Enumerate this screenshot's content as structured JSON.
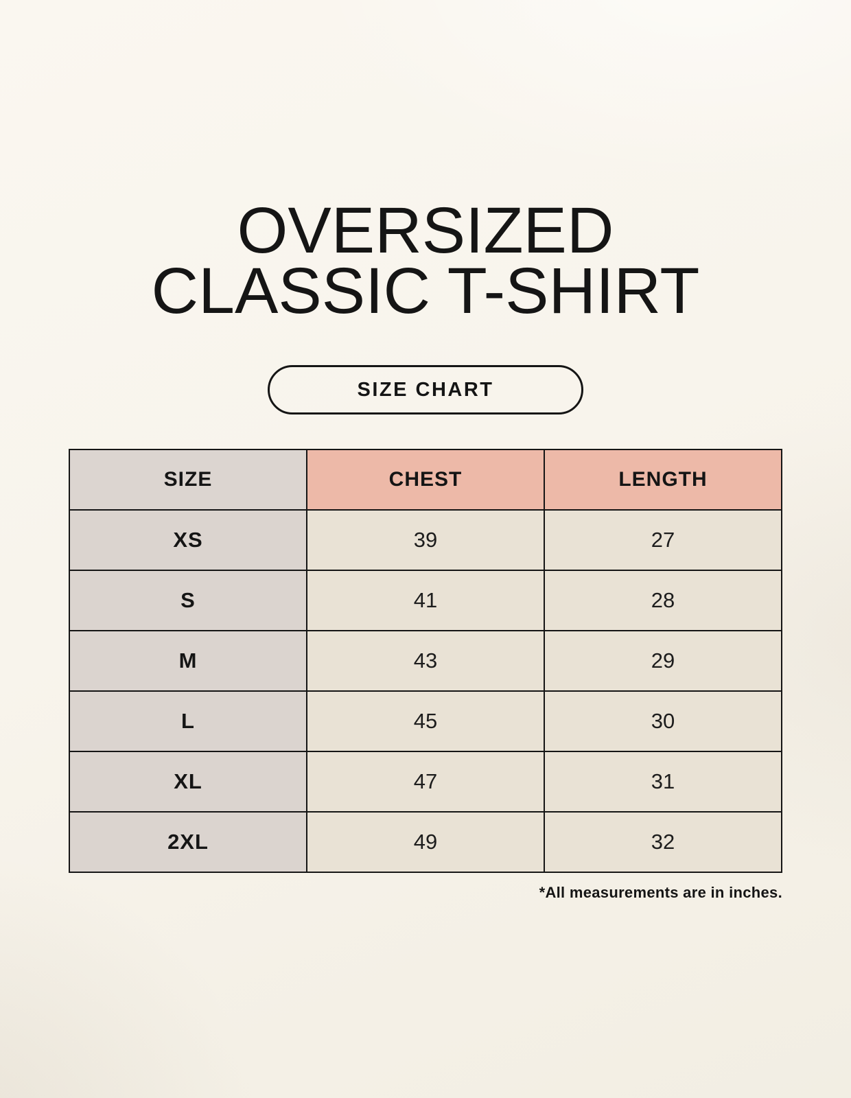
{
  "header": {
    "title_line1": "OVERSIZED",
    "title_line2": "CLASSIC T-SHIRT",
    "button_label": "SIZE CHART"
  },
  "footnote": {
    "text": "*All measurements are in inches."
  },
  "colors": {
    "background": "#f8f4ec",
    "accent_header": "#edb9a8",
    "size_column": "#dcd5d0",
    "size_column_body": "#dbd4cf",
    "data_cell": "#e9e2d5",
    "border": "#151515",
    "text": "#151515"
  },
  "chart_data": {
    "type": "table",
    "title": "OVERSIZED CLASSIC T-SHIRT",
    "columns": [
      "SIZE",
      "CHEST",
      "LENGTH"
    ],
    "rows": [
      {
        "size": "XS",
        "chest": 39,
        "length": 27
      },
      {
        "size": "S",
        "chest": 41,
        "length": 28
      },
      {
        "size": "M",
        "chest": 43,
        "length": 29
      },
      {
        "size": "L",
        "chest": 45,
        "length": 30
      },
      {
        "size": "XL",
        "chest": 47,
        "length": 31
      },
      {
        "size": "2XL",
        "chest": 49,
        "length": 32
      }
    ],
    "units": "inches",
    "layout": {
      "grid": true,
      "header_accent_columns": [
        "CHEST",
        "LENGTH"
      ]
    }
  }
}
